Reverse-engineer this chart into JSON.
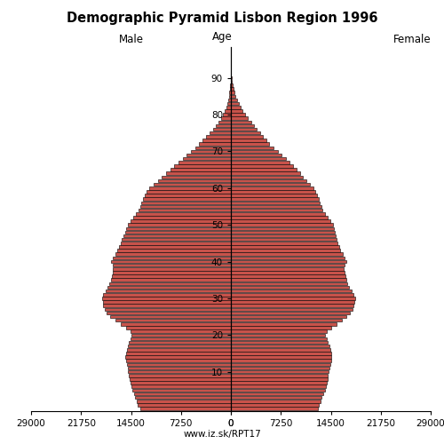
{
  "title": "Demographic Pyramid Lisbon Region 1996",
  "male_label": "Male",
  "female_label": "Female",
  "age_label": "Age",
  "footer": "www.iz.sk/RPT17",
  "xlim": 29000,
  "xticks_male": [
    -29000,
    -21750,
    -14500,
    -7250,
    0
  ],
  "xticks_female": [
    0,
    7250,
    14500,
    21750,
    29000
  ],
  "xticklabels": [
    "29000",
    "21750",
    "14500",
    "7250",
    "0"
  ],
  "ytick_positions": [
    10,
    20,
    30,
    40,
    50,
    60,
    70,
    80,
    90
  ],
  "bar_color": "#c8524a",
  "bar_edgecolor": "#000000",
  "ages": [
    0,
    1,
    2,
    3,
    4,
    5,
    6,
    7,
    8,
    9,
    10,
    11,
    12,
    13,
    14,
    15,
    16,
    17,
    18,
    19,
    20,
    21,
    22,
    23,
    24,
    25,
    26,
    27,
    28,
    29,
    30,
    31,
    32,
    33,
    34,
    35,
    36,
    37,
    38,
    39,
    40,
    41,
    42,
    43,
    44,
    45,
    46,
    47,
    48,
    49,
    50,
    51,
    52,
    53,
    54,
    55,
    56,
    57,
    58,
    59,
    60,
    61,
    62,
    63,
    64,
    65,
    66,
    67,
    68,
    69,
    70,
    71,
    72,
    73,
    74,
    75,
    76,
    77,
    78,
    79,
    80,
    81,
    82,
    83,
    84,
    85,
    86,
    87,
    88,
    89,
    90,
    91,
    92,
    93,
    94,
    95,
    96,
    97,
    98
  ],
  "male": [
    13200,
    13500,
    13700,
    13900,
    14100,
    14300,
    14500,
    14600,
    14700,
    14800,
    14900,
    15000,
    15100,
    15200,
    15300,
    15200,
    15100,
    15000,
    14800,
    14600,
    14400,
    14600,
    15200,
    16000,
    16800,
    17500,
    18000,
    18300,
    18500,
    18600,
    18700,
    18500,
    18200,
    17900,
    17600,
    17400,
    17300,
    17200,
    17100,
    17200,
    17400,
    17100,
    16800,
    16500,
    16200,
    16000,
    15800,
    15600,
    15400,
    15200,
    15000,
    14600,
    14200,
    13800,
    13400,
    13200,
    13000,
    12800,
    12500,
    12200,
    11800,
    11200,
    10600,
    10000,
    9400,
    8800,
    8200,
    7600,
    7000,
    6400,
    5800,
    5200,
    4600,
    4100,
    3600,
    3100,
    2600,
    2200,
    1800,
    1450,
    1150,
    900,
    700,
    540,
    410,
    300,
    210,
    140,
    90,
    60,
    35,
    20,
    12,
    7,
    4,
    2,
    1,
    1,
    0
  ],
  "female": [
    12600,
    12800,
    13000,
    13200,
    13400,
    13600,
    13800,
    13900,
    14000,
    14100,
    14200,
    14300,
    14400,
    14500,
    14600,
    14500,
    14400,
    14300,
    14100,
    13900,
    13700,
    13900,
    14500,
    15300,
    16100,
    16800,
    17300,
    17600,
    17800,
    17900,
    18000,
    17800,
    17500,
    17200,
    16900,
    16700,
    16600,
    16500,
    16400,
    16500,
    16700,
    16500,
    16200,
    15900,
    15700,
    15500,
    15300,
    15200,
    15100,
    15000,
    14800,
    14400,
    14000,
    13700,
    13300,
    13100,
    12900,
    12700,
    12500,
    12300,
    12000,
    11500,
    11000,
    10500,
    10000,
    9500,
    9000,
    8500,
    8000,
    7400,
    6800,
    6200,
    5600,
    5100,
    4600,
    4200,
    3800,
    3400,
    3000,
    2500,
    2100,
    1700,
    1400,
    1100,
    880,
    680,
    500,
    360,
    250,
    170,
    100,
    60,
    35,
    20,
    12,
    7,
    4,
    2,
    1
  ],
  "bg_color": "#ffffff",
  "linewidth": 0.4
}
